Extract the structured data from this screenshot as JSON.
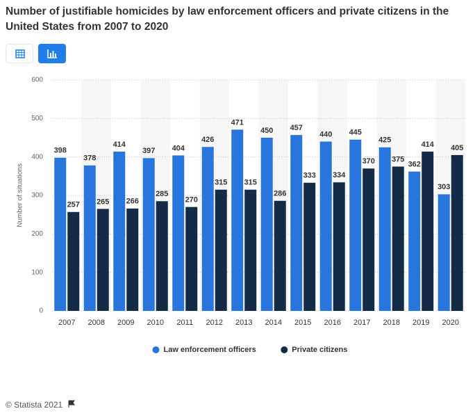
{
  "chart_data": {
    "type": "bar",
    "title": "Number of justifiable homicides by law enforcement officers and private citizens in the United States from 2007 to 2020",
    "y_label": "Number of situations",
    "categories": [
      "2007",
      "2008",
      "2009",
      "2010",
      "2011",
      "2012",
      "2013",
      "2014",
      "2015",
      "2016",
      "2017",
      "2018",
      "2019",
      "2020"
    ],
    "series": [
      {
        "name": "Law enforcement officers",
        "color": "#2876dd",
        "values": [
          398,
          378,
          414,
          397,
          404,
          426,
          471,
          450,
          457,
          440,
          445,
          425,
          362,
          303
        ]
      },
      {
        "name": "Private citizens",
        "color": "#132b47",
        "values": [
          257,
          265,
          266,
          285,
          270,
          315,
          315,
          286,
          333,
          334,
          370,
          375,
          414,
          405
        ]
      }
    ],
    "ylim": [
      0,
      600
    ],
    "yticks": [
      0,
      100,
      200,
      300,
      400,
      500,
      600
    ],
    "grid": true,
    "legend": "bottom"
  },
  "footer": "© Statista 2021"
}
